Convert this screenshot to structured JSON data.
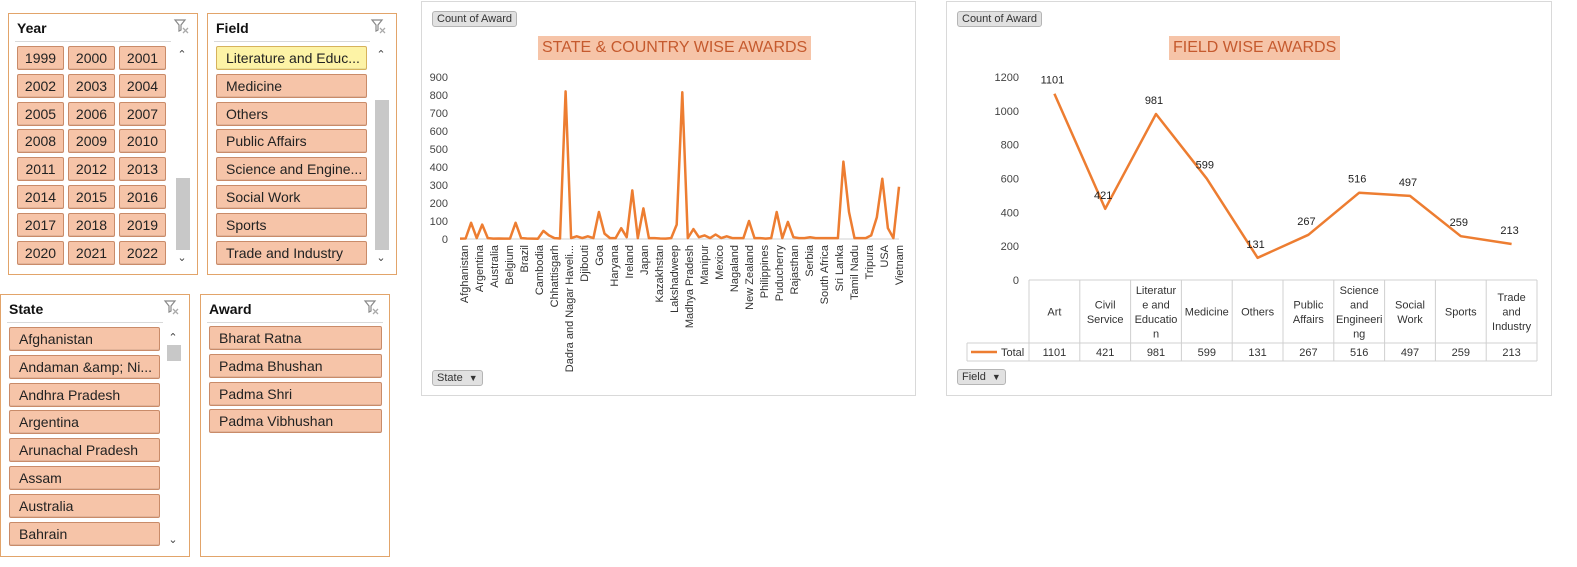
{
  "year_slicer": {
    "title": "Year",
    "items": [
      "1999",
      "2000",
      "2001",
      "2002",
      "2003",
      "2004",
      "2005",
      "2006",
      "2007",
      "2008",
      "2009",
      "2010",
      "2011",
      "2012",
      "2013",
      "2014",
      "2015",
      "2016",
      "2017",
      "2018",
      "2019",
      "2020",
      "2021",
      "2022"
    ]
  },
  "field_slicer": {
    "title": "Field",
    "selected": "Literature and Educ...",
    "items": [
      "Literature and Educ...",
      "Medicine",
      "Others",
      "Public Affairs",
      "Science and Engine...",
      "Social Work",
      "Sports",
      "Trade and Industry"
    ]
  },
  "state_slicer": {
    "title": "State",
    "items": [
      "Afghanistan",
      "Andaman &amp; Ni...",
      "Andhra Pradesh",
      "Argentina",
      "Arunachal Pradesh",
      "Assam",
      "Australia",
      "Bahrain"
    ]
  },
  "award_slicer": {
    "title": "Award",
    "items": [
      "Bharat Ratna",
      "Padma Bhushan",
      "Padma Shri",
      "Padma Vibhushan"
    ]
  },
  "colors": {
    "line": "#ed7d31",
    "slicer_button": "#f6c4a8",
    "selected_button": "#fdf3a6",
    "title_bg": "#f6c4a8"
  },
  "icons": {
    "clear_filter": "clear-filter-icon",
    "scroll_up": "chevron-up-icon",
    "scroll_down": "chevron-down-icon",
    "dropdown": "dropdown-arrow-icon"
  },
  "state_chart": {
    "field_button": "Count of Award",
    "axis_button": "State",
    "title": "STATE & COUNTRY WISE AWARDS"
  },
  "field_chart": {
    "field_button": "Count of Award",
    "axis_button": "Field",
    "title": "FIELD WISE AWARDS",
    "series_label": "Total"
  },
  "chart_data": [
    {
      "type": "line",
      "title": "STATE & COUNTRY WISE AWARDS",
      "ylim": [
        0,
        900
      ],
      "yticks": [
        0,
        100,
        200,
        300,
        400,
        500,
        600,
        700,
        800,
        900
      ],
      "grid": false,
      "x_tick_labels": [
        "Afghanistan",
        "Argentina",
        "Australia",
        "Belgium",
        "Brazil",
        "Cambodia",
        "Chhattisgarh",
        "Dadra and Nagar Haveli...",
        "Djibouti",
        "Goa",
        "Haryana",
        "Ireland",
        "Japan",
        "Kazakhstan",
        "Lakshadweep",
        "Madhya Pradesh",
        "Manipur",
        "Mexico",
        "Nagaland",
        "New Zealand",
        "Philippines",
        "Puducherry",
        "Rajasthan",
        "Serbia",
        "South Africa",
        "Sri Lanka",
        "Tamil Nadu",
        "Tripura",
        "USA",
        "Vietnam"
      ],
      "values": [
        2,
        3,
        90,
        5,
        80,
        5,
        2,
        3,
        2,
        2,
        90,
        5,
        3,
        2,
        1,
        45,
        20,
        5,
        3,
        820,
        5,
        15,
        5,
        15,
        5,
        150,
        30,
        5,
        5,
        60,
        10,
        270,
        5,
        170,
        5,
        5,
        3,
        2,
        5,
        80,
        815,
        5,
        55,
        10,
        20,
        5,
        25,
        5,
        15,
        5,
        5,
        5,
        100,
        5,
        5,
        2,
        5,
        150,
        5,
        95,
        10,
        5,
        5,
        10,
        5,
        5,
        5,
        5,
        5,
        430,
        150,
        5,
        5,
        5,
        20,
        120,
        335,
        60,
        5,
        290
      ]
    },
    {
      "type": "line",
      "title": "FIELD WISE AWARDS",
      "categories": [
        "Art",
        "Civil Service",
        "Literature and Education",
        "Medicine",
        "Others",
        "Public Affairs",
        "Science and Engineering",
        "Social Work",
        "Sports",
        "Trade and Industry"
      ],
      "series": [
        {
          "name": "Total",
          "values": [
            1101,
            421,
            981,
            599,
            131,
            267,
            516,
            497,
            259,
            213
          ]
        }
      ],
      "ylim": [
        0,
        1200
      ],
      "yticks": [
        0,
        200,
        400,
        600,
        800,
        1000,
        1200
      ],
      "grid": false,
      "data_table_headers": [
        [
          "Art"
        ],
        [
          "Civil",
          "Service"
        ],
        [
          "Literatur",
          "e and",
          "Educatio",
          "n"
        ],
        [
          "Medicine"
        ],
        [
          "Others"
        ],
        [
          "Public",
          "Affairs"
        ],
        [
          "Science",
          "and",
          "Engineeri",
          "ng"
        ],
        [
          "Social",
          "Work"
        ],
        [
          "Sports"
        ],
        [
          "Trade",
          "and",
          "Industry"
        ]
      ]
    }
  ]
}
